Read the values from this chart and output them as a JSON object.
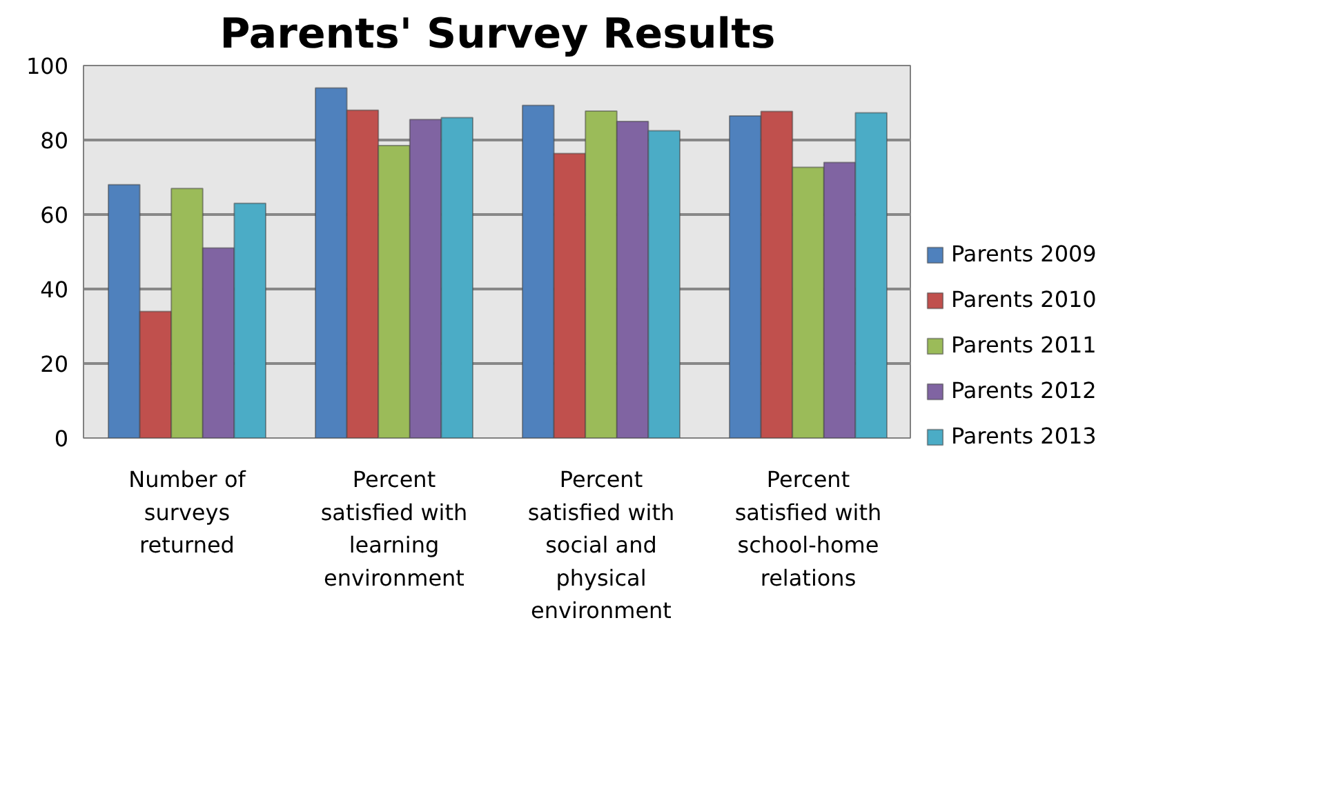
{
  "chart_data": {
    "type": "bar",
    "title": "Parents' Survey Results",
    "categories": [
      "Number of surveys returned",
      "Percent satisfied with learning environment",
      "Percent satisfied with social and physical environment",
      "Percent satisfied with school-home relations"
    ],
    "series": [
      {
        "name": "Parents 2009",
        "color": "#4f81bd",
        "values": [
          68,
          94,
          89.3,
          86.5
        ]
      },
      {
        "name": "Parents 2010",
        "color": "#c0504d",
        "values": [
          34,
          88,
          76.4,
          87.7
        ]
      },
      {
        "name": "Parents 2011",
        "color": "#9bbb59",
        "values": [
          67,
          78.5,
          87.8,
          72.7
        ]
      },
      {
        "name": "Parents 2012",
        "color": "#8064a2",
        "values": [
          51,
          85.5,
          85,
          74
        ]
      },
      {
        "name": "Parents 2013",
        "color": "#4bacc6",
        "values": [
          63,
          86,
          82.5,
          87.3
        ]
      }
    ],
    "ylim": [
      0,
      100
    ],
    "yticks": [
      0,
      20,
      40,
      60,
      80,
      100
    ],
    "grid": "y",
    "legend": "right"
  }
}
